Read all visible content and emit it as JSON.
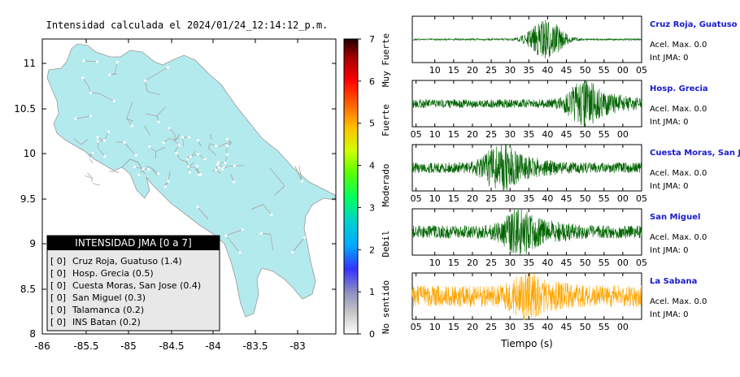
{
  "map": {
    "title": "Intensidad calculada el 2024/01/24_12:14:12_p.m.",
    "x_ticks": [
      "-86",
      "-85.5",
      "-85",
      "-84.5",
      "-84",
      "-83.5",
      "-83"
    ],
    "y_ticks": [
      "11",
      "10.5",
      "10",
      "9.5",
      "9",
      "8.5",
      "8"
    ],
    "land_color": "#b3eaed",
    "road_color": "#a9a9a9",
    "legend": {
      "header": "INTENSIDAD JMA [0 a 7]",
      "items": [
        {
          "bracket": "[ 0]",
          "label": "Cruz Roja, Guatuso (1.4)"
        },
        {
          "bracket": "[ 0]",
          "label": "Hosp. Grecia (0.5)"
        },
        {
          "bracket": "[ 0]",
          "label": "Cuesta Moras, San Jose (0.4)"
        },
        {
          "bracket": "[ 0]",
          "label": "San Miguel (0.3)"
        },
        {
          "bracket": "[ 0]",
          "label": "Talamanca (0.2)"
        },
        {
          "bracket": "[ 0]",
          "label": "INS Batan (0.2)"
        }
      ]
    }
  },
  "colorbar": {
    "ticks": [
      "7",
      "6",
      "5",
      "4",
      "3",
      "2",
      "1",
      "0"
    ],
    "labels": [
      "Muy Fuerte",
      "Fuerte",
      "Moderado",
      "Debil",
      "No sentido"
    ]
  },
  "chart_data": {
    "type": "line",
    "xlabel": "Tiempo (s)",
    "tick_labels": [
      [
        "10",
        "15",
        "20",
        "25",
        "30",
        "35",
        "40",
        "45",
        "50",
        "55",
        "00",
        "05"
      ],
      [
        "05",
        "10",
        "15",
        "20",
        "25",
        "30",
        "35",
        "40",
        "45",
        "50",
        "55",
        "00"
      ],
      [
        "05",
        "10",
        "15",
        "20",
        "25",
        "30",
        "35",
        "40",
        "45",
        "50",
        "55",
        "00",
        "05"
      ],
      [
        "10",
        "15",
        "20",
        "25",
        "30",
        "35",
        "40",
        "45",
        "50",
        "55",
        "00",
        "05"
      ],
      [
        "05",
        "10",
        "15",
        "20",
        "25",
        "30",
        "35",
        "40",
        "45",
        "50",
        "55",
        "00"
      ]
    ],
    "series": [
      {
        "name": "Cruz Roja, Guatuso",
        "acel": "Acel. Max. 0.0",
        "int": "Int JMA: 0",
        "color": "#006400",
        "peak_s": 40,
        "amp": 0.95,
        "base": 0.04
      },
      {
        "name": "Hosp. Grecia",
        "acel": "Acel. Max. 0.0",
        "int": "Int JMA: 0",
        "color": "#006400",
        "peak_s": 50,
        "amp": 0.9,
        "base": 0.2
      },
      {
        "name": "Cuesta Moras, San Jose",
        "acel": "Acel. Max. 0.0",
        "int": "Int JMA: 0",
        "color": "#006400",
        "peak_s": 28,
        "amp": 0.9,
        "base": 0.25
      },
      {
        "name": "San Miguel",
        "acel": "Acel. Max. 0.0",
        "int": "Int JMA: 0",
        "color": "#006400",
        "peak_s": 33,
        "amp": 0.85,
        "base": 0.3
      },
      {
        "name": "La Sabana",
        "acel": "Acel. Max. 0.0",
        "int": "Int JMA: 0",
        "color": "#ffa500",
        "peak_s": 35,
        "amp": 0.6,
        "base": 0.5
      }
    ]
  }
}
